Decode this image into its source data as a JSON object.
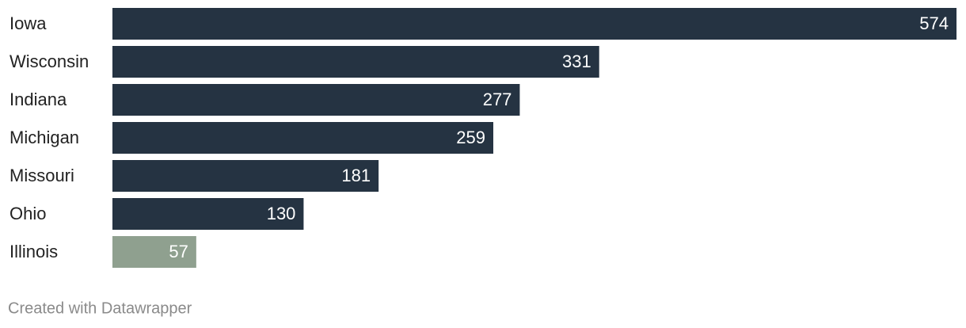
{
  "chart_data": {
    "type": "bar",
    "orientation": "horizontal",
    "categories": [
      "Iowa",
      "Wisconsin",
      "Indiana",
      "Michigan",
      "Missouri",
      "Ohio",
      "Illinois"
    ],
    "values": [
      574,
      331,
      277,
      259,
      181,
      130,
      57
    ],
    "colors": [
      "#253342",
      "#253342",
      "#253342",
      "#253342",
      "#253342",
      "#253342",
      "#8fa08f"
    ],
    "footer": "Created with Datawrapper"
  }
}
